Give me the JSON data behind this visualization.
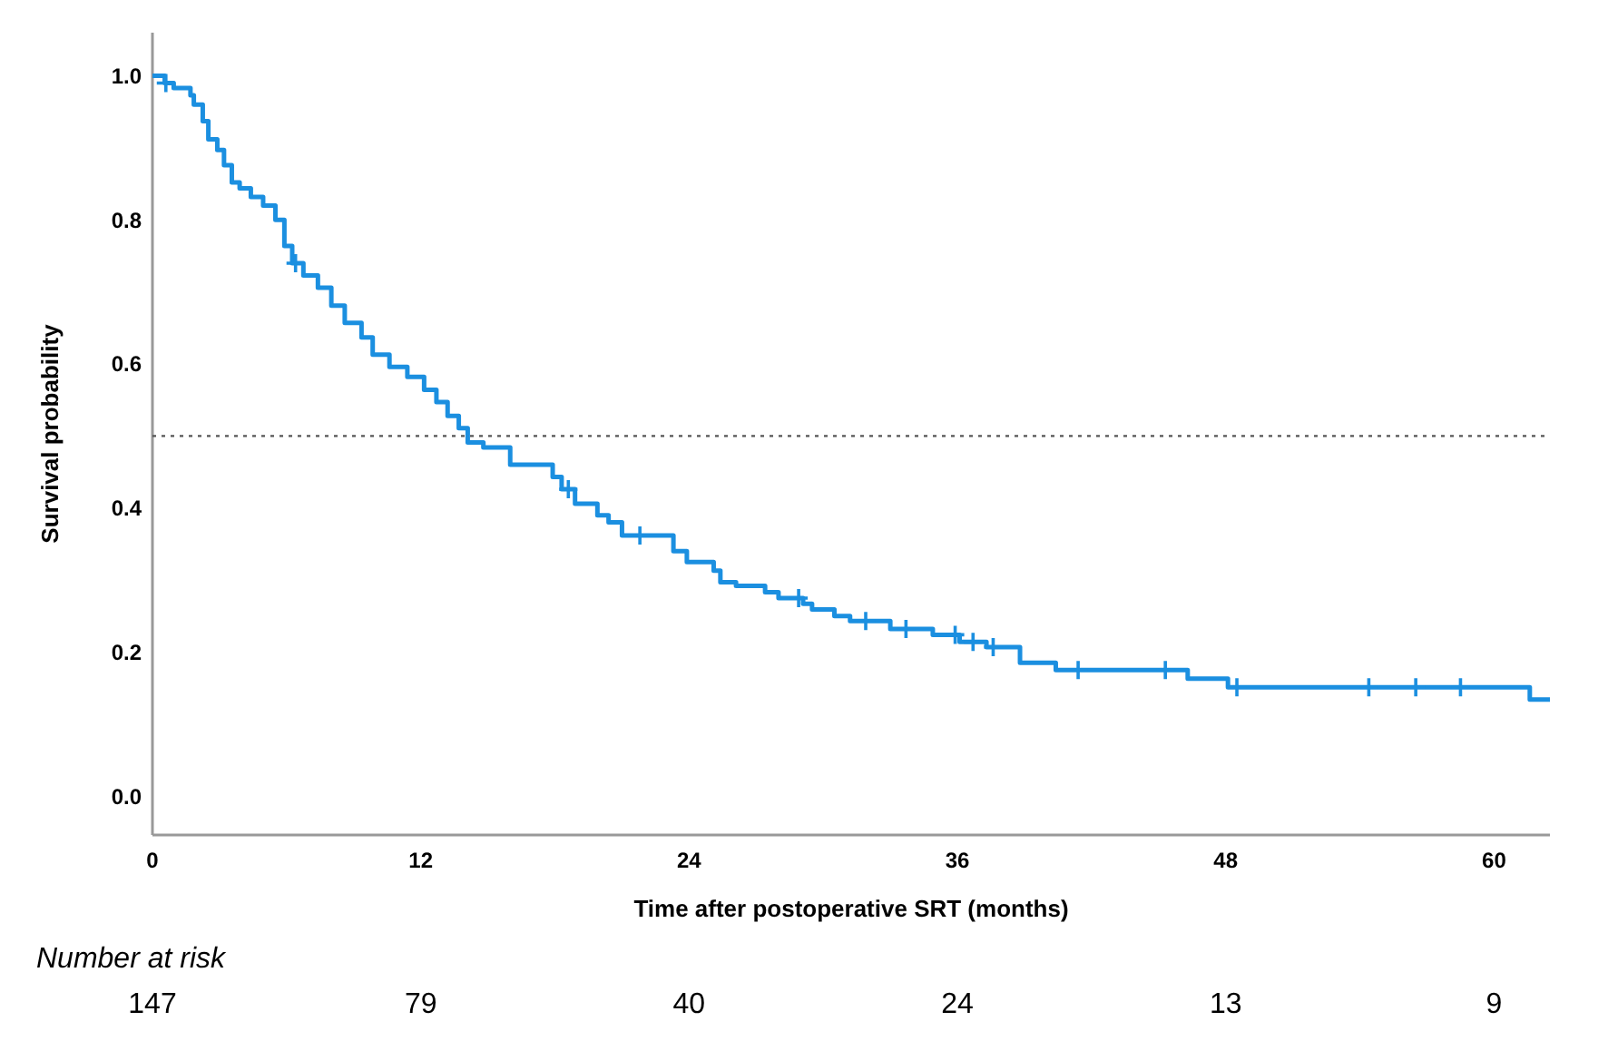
{
  "chart_data": {
    "type": "step",
    "xlabel": "Time after postoperative SRT (months)",
    "ylabel": "Survival probability",
    "xlim": [
      0,
      62.5
    ],
    "xticks": [
      0,
      12,
      24,
      36,
      48,
      60
    ],
    "ylim": [
      -0.054,
      1.06
    ],
    "yticks": [
      {
        "value": 0,
        "label": "0.0"
      },
      {
        "value": 0.2,
        "label": "0.2"
      },
      {
        "value": 0.4,
        "label": "0.4"
      },
      {
        "value": 0.6,
        "label": "0.6"
      },
      {
        "value": 0.8,
        "label": "0.8"
      },
      {
        "value": 1,
        "label": "1.0"
      }
    ],
    "grid": false,
    "series": [
      {
        "color": "#1b8fe0",
        "line_style": "solid",
        "x": [
          0,
          0.55,
          0.95,
          1.7,
          1.85,
          2.25,
          2.5,
          2.9,
          3.2,
          3.55,
          3.9,
          4.4,
          4.95,
          5.5,
          5.9,
          6.25,
          6.75,
          7.4,
          8.0,
          8.6,
          9.35,
          9.85,
          10.6,
          11.4,
          12.15,
          12.7,
          13.2,
          13.7,
          14.1,
          14.8,
          16.0,
          17.9,
          18.3,
          18.9,
          19.9,
          20.4,
          21.0,
          23.3,
          23.9,
          25.1,
          25.4,
          26.1,
          27.4,
          28.0,
          29.1,
          29.5,
          30.5,
          31.2,
          33.0,
          34.9,
          36.1,
          37.3,
          38.8,
          40.4,
          46.3,
          48.1,
          61.6,
          62.5
        ],
        "values": [
          1.0,
          0.99,
          0.983,
          0.973,
          0.96,
          0.937,
          0.912,
          0.897,
          0.876,
          0.852,
          0.844,
          0.832,
          0.82,
          0.8,
          0.764,
          0.74,
          0.723,
          0.706,
          0.681,
          0.657,
          0.637,
          0.613,
          0.596,
          0.582,
          0.564,
          0.547,
          0.528,
          0.511,
          0.491,
          0.484,
          0.46,
          0.443,
          0.426,
          0.406,
          0.39,
          0.38,
          0.362,
          0.34,
          0.325,
          0.313,
          0.297,
          0.292,
          0.283,
          0.275,
          0.267,
          0.259,
          0.25,
          0.243,
          0.232,
          0.224,
          0.214,
          0.207,
          0.185,
          0.175,
          0.163,
          0.151,
          0.134,
          0.134
        ]
      },
      {
        "type": "scatter",
        "color": "#1b8fe0",
        "marker": "cross",
        "x": [
          0.6,
          6.4,
          18.6,
          21.8,
          28.9,
          31.9,
          33.7,
          35.9,
          36.7,
          37.6,
          41.4,
          45.3,
          48.5,
          54.4,
          56.5,
          58.5
        ],
        "values": [
          0.99,
          0.74,
          0.426,
          0.362,
          0.275,
          0.243,
          0.232,
          0.224,
          0.214,
          0.207,
          0.175,
          0.175,
          0.151,
          0.151,
          0.151,
          0.151
        ]
      }
    ],
    "ref_lines": [
      {
        "axis": "y",
        "value": 0.5,
        "color": "#555555",
        "line_style": "dotted"
      }
    ],
    "annotations": [
      "Number at risk",
      "147",
      "79",
      "40",
      "24",
      "13",
      "9"
    ]
  }
}
